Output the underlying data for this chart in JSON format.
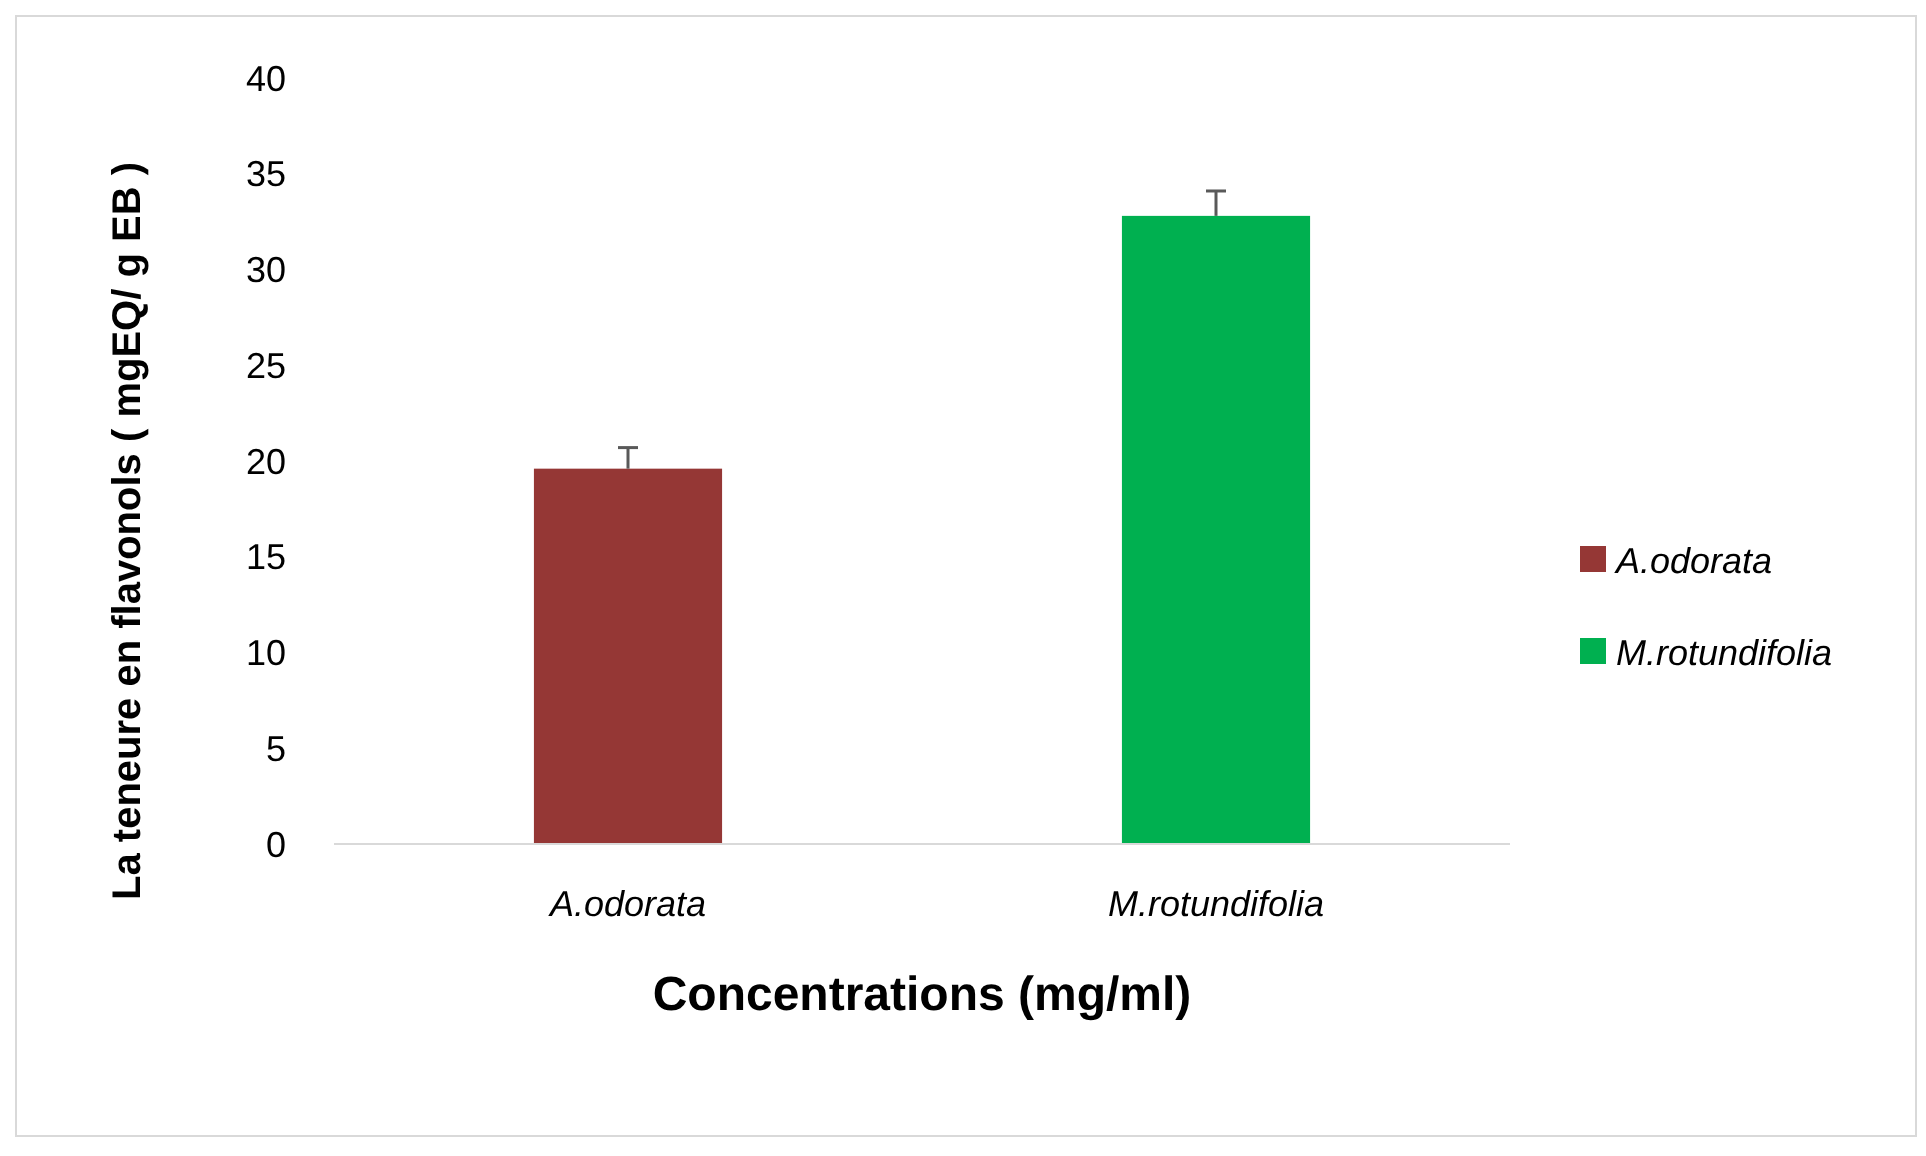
{
  "chart_data": {
    "type": "bar",
    "xlabel": "Concentrations (mg/ml)",
    "ylabel": "La teneure en flavonols ( mgEQ/ g EB )",
    "categories": [
      "A.odorata",
      "M.rotundifolia"
    ],
    "stacked": true,
    "series": [
      {
        "name": "A.odorata",
        "color": "#953735",
        "values": [
          19.6,
          null
        ],
        "errors": [
          1.1,
          null
        ]
      },
      {
        "name": "M.rotundifolia",
        "color": "#00b050",
        "values": [
          null,
          32.8
        ],
        "errors": [
          null,
          1.3
        ]
      }
    ],
    "ylim": [
      0,
      40
    ],
    "yticks": [
      0,
      5,
      10,
      15,
      20,
      25,
      30,
      35,
      40
    ],
    "grid": false,
    "legend": "right"
  }
}
